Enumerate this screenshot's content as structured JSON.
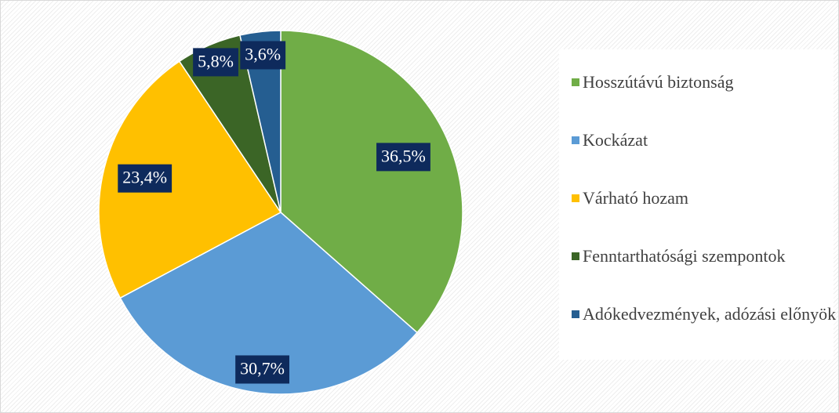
{
  "chart_data": {
    "type": "pie",
    "categories": [
      "Hosszútávú biztonság",
      "Kockázat",
      "Várható hozam",
      "Fenntarthatósági szempontok",
      "Adókedvezmények, adózási előnyök"
    ],
    "values": [
      36.5,
      30.7,
      23.4,
      5.8,
      3.6
    ],
    "value_labels": [
      "36,5%",
      "30,7%",
      "23,4%",
      "5,8%",
      "3,6%"
    ],
    "colors": [
      "#70ad47",
      "#5b9bd5",
      "#ffc000",
      "#3b6526",
      "#255e91"
    ],
    "legend": "right"
  }
}
